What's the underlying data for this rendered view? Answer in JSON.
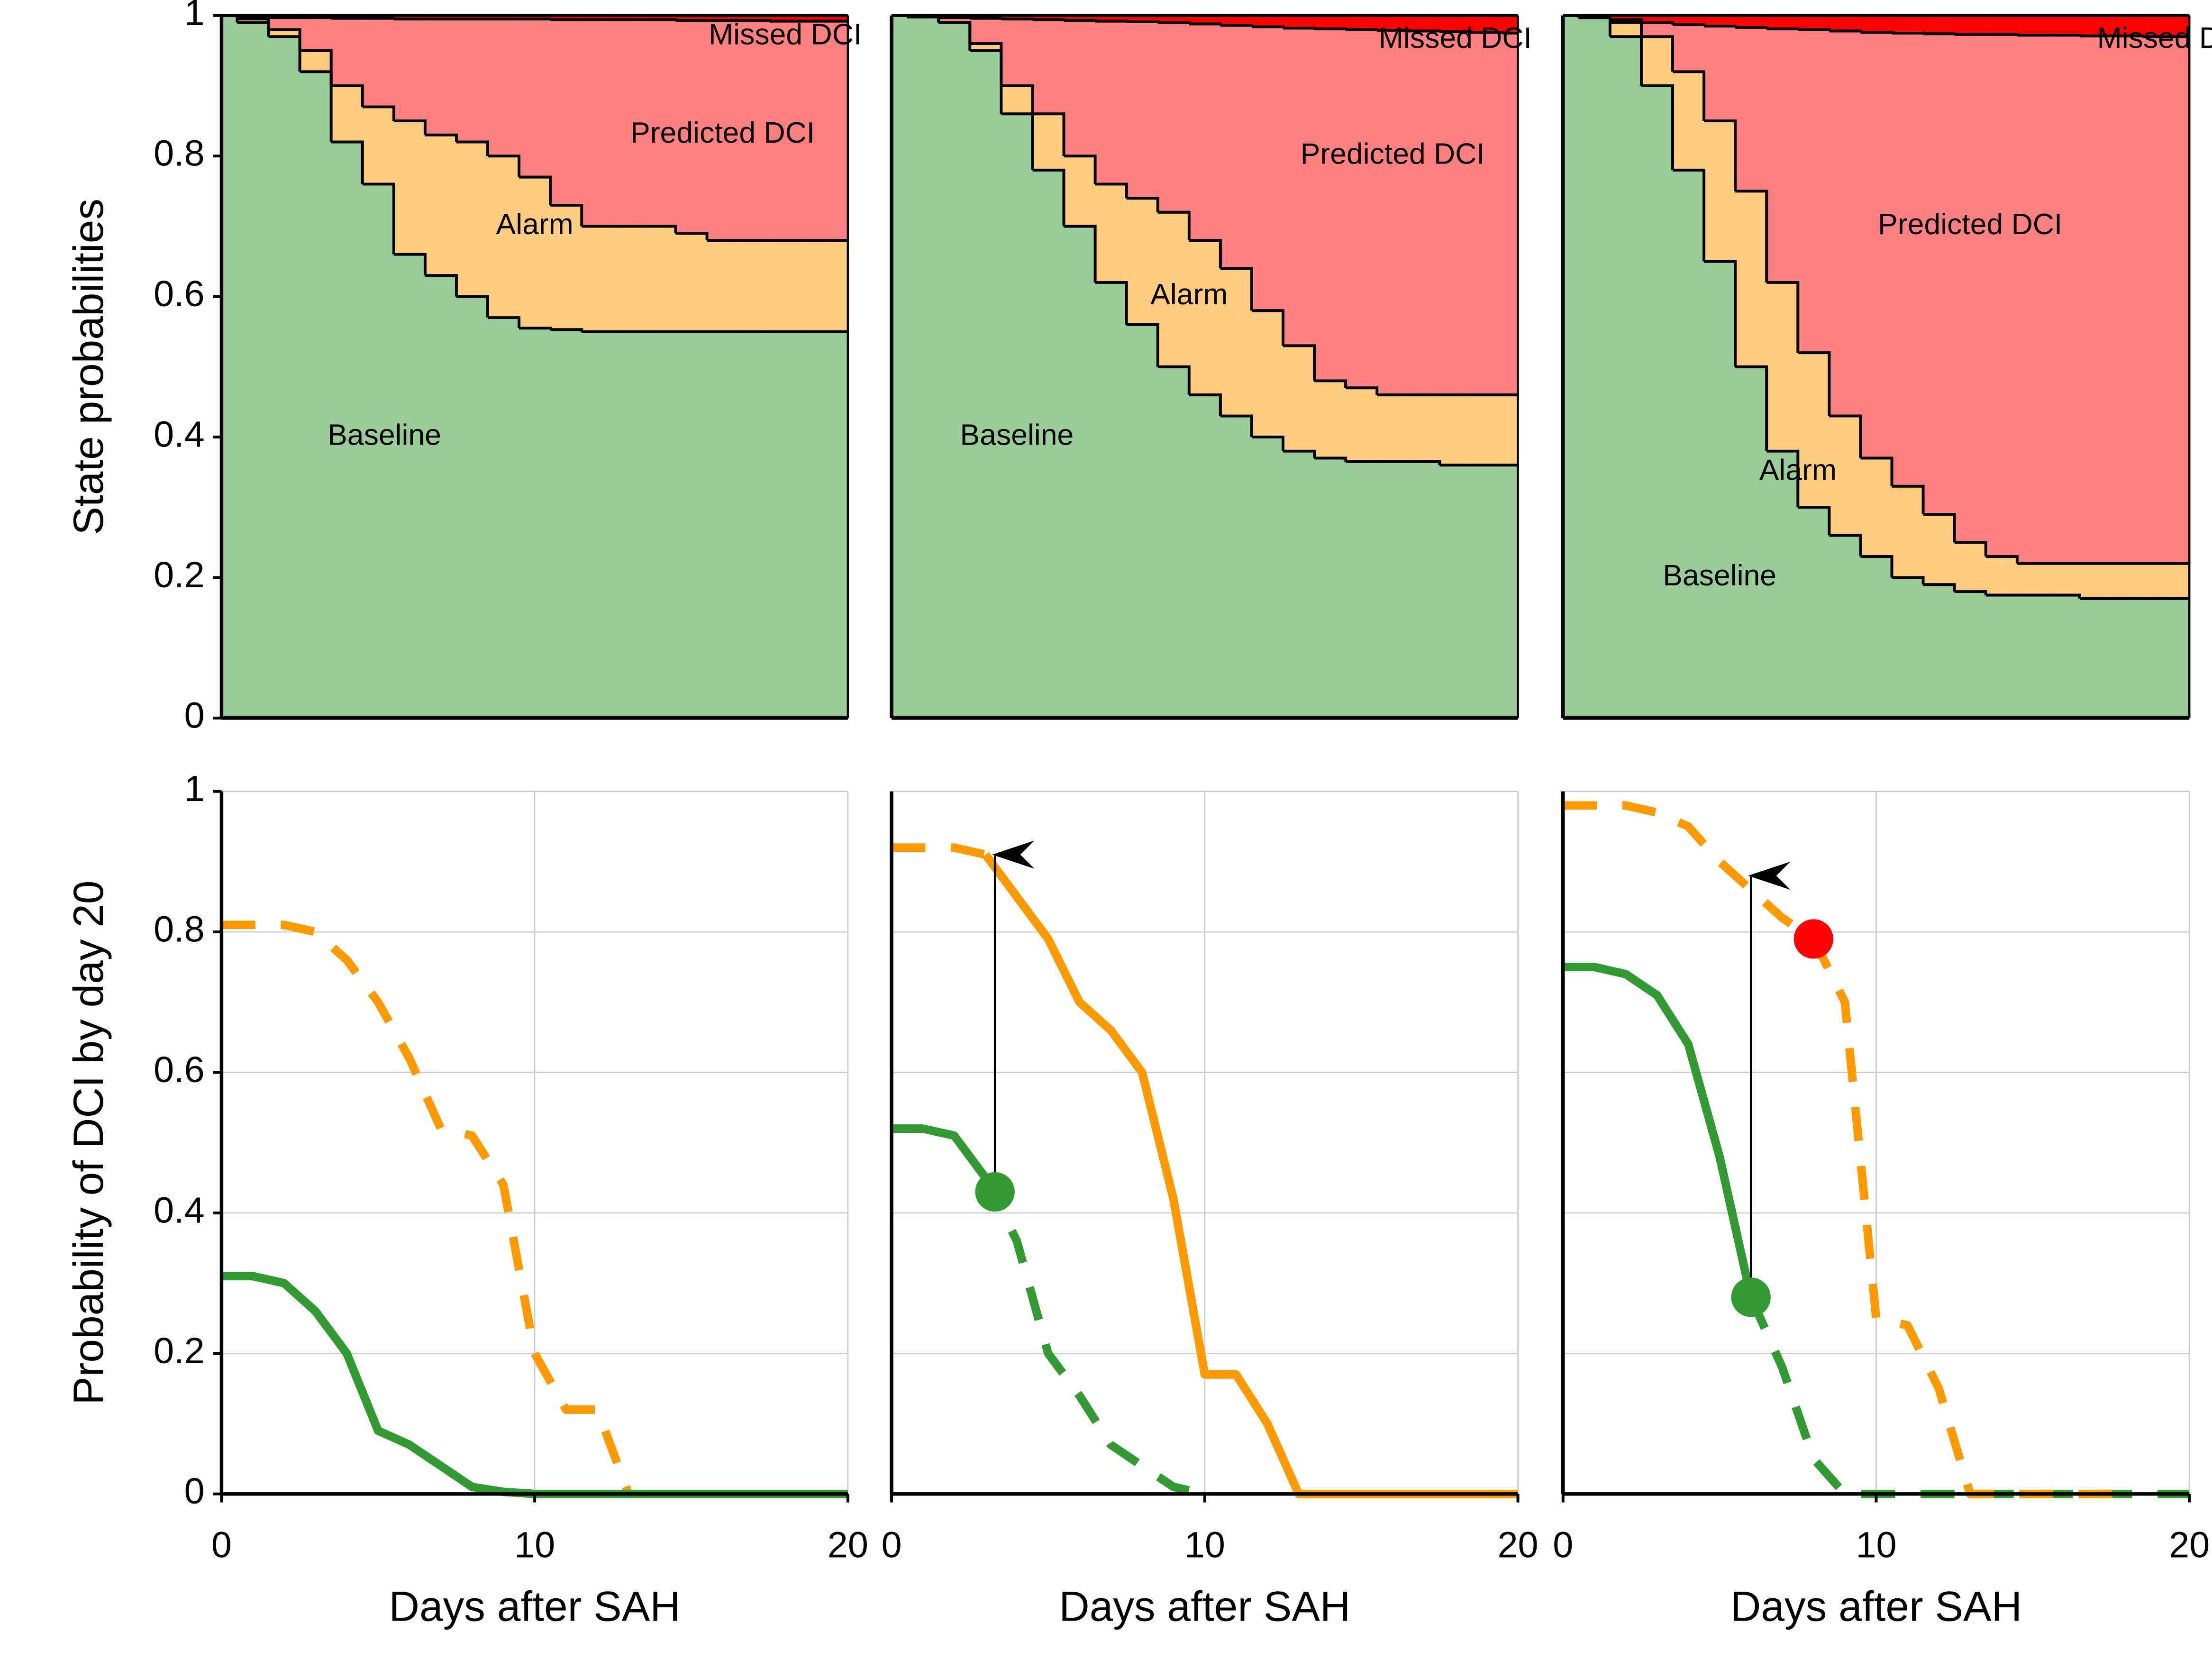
{
  "chart_data": [
    {
      "type": "area",
      "ylabel": "State probabilities",
      "xlim": [
        0,
        20
      ],
      "ylim": [
        0,
        1
      ],
      "yticks": [
        0,
        0.2,
        0.4,
        0.6,
        0.8,
        1
      ],
      "x": [
        0,
        1,
        2,
        3,
        4,
        5,
        6,
        7,
        8,
        9,
        10,
        11,
        12,
        13,
        14,
        15,
        16,
        17,
        18,
        19,
        20
      ],
      "series": [
        {
          "name": "Baseline",
          "color": "#99cc99",
          "values": [
            1,
            0.99,
            0.97,
            0.92,
            0.82,
            0.76,
            0.66,
            0.63,
            0.6,
            0.57,
            0.555,
            0.553,
            0.55,
            0.55,
            0.55,
            0.55,
            0.55,
            0.55,
            0.55,
            0.55,
            0.55
          ]
        },
        {
          "name": "Alarm",
          "color": "#ffcc80",
          "values": [
            0,
            0.005,
            0.01,
            0.03,
            0.08,
            0.11,
            0.19,
            0.2,
            0.22,
            0.23,
            0.215,
            0.177,
            0.15,
            0.15,
            0.15,
            0.14,
            0.13,
            0.13,
            0.13,
            0.13,
            0.13
          ]
        },
        {
          "name": "Predicted DCI",
          "color": "#ff8080",
          "values": [
            0,
            0.003,
            0.017,
            0.047,
            0.096,
            0.126,
            0.145,
            0.165,
            0.175,
            0.195,
            0.225,
            0.264,
            0.294,
            0.294,
            0.294,
            0.303,
            0.313,
            0.313,
            0.312,
            0.312,
            0.312
          ]
        },
        {
          "name": "Missed DCI",
          "color": "#ff0000",
          "values": [
            0,
            0.002,
            0.003,
            0.003,
            0.004,
            0.004,
            0.005,
            0.005,
            0.005,
            0.005,
            0.005,
            0.006,
            0.006,
            0.006,
            0.006,
            0.007,
            0.007,
            0.007,
            0.008,
            0.008,
            0.008
          ]
        }
      ]
    },
    {
      "type": "area",
      "xlim": [
        0,
        20
      ],
      "ylim": [
        0,
        1
      ],
      "x": [
        0,
        1,
        2,
        3,
        4,
        5,
        6,
        7,
        8,
        9,
        10,
        11,
        12,
        13,
        14,
        15,
        16,
        17,
        18,
        19,
        20
      ],
      "series": [
        {
          "name": "Baseline",
          "color": "#99cc99",
          "values": [
            1,
            0.998,
            0.99,
            0.95,
            0.86,
            0.78,
            0.7,
            0.62,
            0.56,
            0.5,
            0.46,
            0.43,
            0.4,
            0.38,
            0.37,
            0.365,
            0.365,
            0.365,
            0.36,
            0.36,
            0.36
          ]
        },
        {
          "name": "Alarm",
          "color": "#ffcc80",
          "values": [
            0,
            0,
            0,
            0.01,
            0.04,
            0.08,
            0.1,
            0.14,
            0.18,
            0.22,
            0.22,
            0.21,
            0.18,
            0.15,
            0.11,
            0.105,
            0.095,
            0.095,
            0.1,
            0.1,
            0.1
          ]
        },
        {
          "name": "Predicted DCI",
          "color": "#ff8080",
          "values": [
            0,
            0,
            0.007,
            0.036,
            0.095,
            0.134,
            0.193,
            0.232,
            0.251,
            0.27,
            0.308,
            0.346,
            0.404,
            0.452,
            0.501,
            0.51,
            0.519,
            0.518,
            0.517,
            0.516,
            0.515
          ]
        },
        {
          "name": "Missed DCI",
          "color": "#ff0000",
          "values": [
            0,
            0.002,
            0.003,
            0.004,
            0.005,
            0.006,
            0.007,
            0.008,
            0.009,
            0.01,
            0.012,
            0.014,
            0.016,
            0.018,
            0.019,
            0.02,
            0.021,
            0.022,
            0.023,
            0.024,
            0.025
          ]
        }
      ]
    },
    {
      "type": "area",
      "xlim": [
        0,
        20
      ],
      "ylim": [
        0,
        1
      ],
      "x": [
        0,
        1,
        2,
        3,
        4,
        5,
        6,
        7,
        8,
        9,
        10,
        11,
        12,
        13,
        14,
        15,
        16,
        17,
        18,
        19,
        20
      ],
      "series": [
        {
          "name": "Baseline",
          "color": "#99cc99",
          "values": [
            1,
            0.997,
            0.97,
            0.9,
            0.78,
            0.65,
            0.5,
            0.38,
            0.3,
            0.26,
            0.23,
            0.2,
            0.19,
            0.18,
            0.175,
            0.175,
            0.175,
            0.17,
            0.17,
            0.17,
            0.17
          ]
        },
        {
          "name": "Alarm",
          "color": "#ffcc80",
          "values": [
            0,
            0,
            0.02,
            0.07,
            0.14,
            0.2,
            0.25,
            0.24,
            0.22,
            0.17,
            0.14,
            0.13,
            0.1,
            0.07,
            0.055,
            0.045,
            0.045,
            0.05,
            0.05,
            0.05,
            0.05
          ]
        },
        {
          "name": "Predicted DCI",
          "color": "#ff8080",
          "values": [
            0,
            0,
            0.004,
            0.02,
            0.067,
            0.135,
            0.233,
            0.361,
            0.46,
            0.548,
            0.606,
            0.645,
            0.684,
            0.723,
            0.743,
            0.752,
            0.752,
            0.751,
            0.751,
            0.75,
            0.75
          ]
        },
        {
          "name": "Missed DCI",
          "color": "#ff0000",
          "values": [
            0,
            0.003,
            0.006,
            0.01,
            0.013,
            0.015,
            0.017,
            0.019,
            0.02,
            0.022,
            0.024,
            0.025,
            0.026,
            0.027,
            0.027,
            0.028,
            0.028,
            0.029,
            0.029,
            0.03,
            0.03
          ]
        }
      ]
    },
    {
      "type": "line",
      "ylabel": "Probability of DCI by day 20",
      "xlabel": "Days after SAH",
      "grid": true,
      "xlim": [
        0,
        20
      ],
      "ylim": [
        0,
        1
      ],
      "xticks": [
        0,
        10,
        20
      ],
      "yticks": [
        0,
        0.2,
        0.4,
        0.6,
        0.8,
        1
      ],
      "ytick_labels": true,
      "x": [
        0,
        1,
        2,
        3,
        4,
        5,
        6,
        7,
        8,
        9,
        10,
        11,
        12,
        13,
        14,
        15,
        16,
        17,
        18,
        19,
        20
      ],
      "series": [
        {
          "color": "#ff9900",
          "dashed": true,
          "values": [
            0.81,
            0.81,
            0.81,
            0.8,
            0.76,
            0.7,
            0.62,
            0.52,
            0.51,
            0.44,
            0.2,
            0.12,
            0.12,
            0,
            null,
            null,
            null,
            null,
            null,
            null,
            null
          ]
        },
        {
          "color": "#339933",
          "dashed": false,
          "values": [
            0.31,
            0.31,
            0.3,
            0.26,
            0.2,
            0.09,
            0.07,
            0.04,
            0.01,
            0.003,
            0,
            0,
            0,
            0,
            0,
            0,
            0,
            0,
            0,
            0,
            0
          ]
        }
      ]
    },
    {
      "type": "line",
      "xlabel": "Days after SAH",
      "grid": true,
      "xlim": [
        0,
        20
      ],
      "ylim": [
        0,
        1
      ],
      "xticks": [
        0,
        10,
        20
      ],
      "yticks": [
        0,
        0.2,
        0.4,
        0.6,
        0.8,
        1
      ],
      "ytick_labels": false,
      "x": [
        0,
        1,
        2,
        3,
        4,
        5,
        6,
        7,
        8,
        9,
        10,
        11,
        12,
        13,
        14,
        15,
        16,
        17,
        18,
        19,
        20
      ],
      "series": [
        {
          "color": "#339933",
          "dashed": false,
          "values": [
            0.52,
            0.52,
            0.51,
            0.45,
            null,
            null,
            null,
            null,
            null,
            null,
            null,
            null,
            null,
            null,
            null,
            null,
            null,
            null,
            null,
            null,
            null
          ]
        },
        {
          "color": "#339933",
          "dashed": true,
          "values": [
            null,
            null,
            null,
            0.45,
            0.36,
            0.2,
            0.14,
            0.07,
            0.04,
            0.01,
            0,
            null,
            null,
            null,
            null,
            null,
            null,
            null,
            null,
            null,
            null
          ]
        },
        {
          "color": "#ff9900",
          "dashed": true,
          "values": [
            0.92,
            0.92,
            0.92,
            0.91,
            null,
            null,
            null,
            null,
            null,
            null,
            null,
            null,
            null,
            null,
            null,
            null,
            null,
            null,
            null,
            null,
            null
          ]
        },
        {
          "color": "#ff9900",
          "dashed": false,
          "values": [
            null,
            null,
            null,
            0.91,
            0.85,
            0.79,
            0.7,
            0.66,
            0.6,
            0.42,
            0.17,
            0.17,
            0.1,
            0,
            0,
            0,
            0,
            0,
            0,
            0,
            0
          ]
        }
      ],
      "points": [
        {
          "x": 3.3,
          "y": 0.43,
          "color": "#339933"
        }
      ],
      "arrows": [
        {
          "x": 3.3,
          "y": [
            0.43,
            0.91
          ]
        }
      ]
    },
    {
      "type": "line",
      "xlabel": "Days after SAH",
      "grid": true,
      "xlim": [
        0,
        20
      ],
      "ylim": [
        0,
        1
      ],
      "xticks": [
        0,
        10,
        20
      ],
      "yticks": [
        0,
        0.2,
        0.4,
        0.6,
        0.8,
        1
      ],
      "ytick_labels": false,
      "x": [
        0,
        1,
        2,
        3,
        4,
        5,
        6,
        7,
        8,
        9,
        10,
        11,
        12,
        13,
        14,
        15,
        16,
        17,
        18,
        19,
        20
      ],
      "series": [
        {
          "color": "#339933",
          "dashed": false,
          "values": [
            0.75,
            0.75,
            0.74,
            0.71,
            0.64,
            0.48,
            0.28,
            null,
            null,
            null,
            null,
            null,
            null,
            null,
            null,
            null,
            null,
            null,
            null,
            null,
            null
          ]
        },
        {
          "color": "#339933",
          "dashed": true,
          "values": [
            null,
            null,
            null,
            null,
            null,
            null,
            0.28,
            0.18,
            0.05,
            0,
            0,
            0,
            0,
            0,
            0,
            0,
            0,
            0,
            0,
            0,
            0
          ]
        },
        {
          "color": "#ff9900",
          "dashed": true,
          "values": [
            0.98,
            0.98,
            0.98,
            0.97,
            0.95,
            0.9,
            0.86,
            0.82,
            0.79,
            0.7,
            0.25,
            0.24,
            0.15,
            0,
            0,
            0,
            0,
            0,
            0,
            null,
            null
          ]
        }
      ],
      "points": [
        {
          "x": 6,
          "y": 0.28,
          "color": "#339933"
        },
        {
          "x": 8,
          "y": 0.79,
          "color": "#ff0000"
        }
      ],
      "arrows": [
        {
          "x": 6,
          "y": [
            0.28,
            0.88
          ]
        }
      ]
    }
  ]
}
